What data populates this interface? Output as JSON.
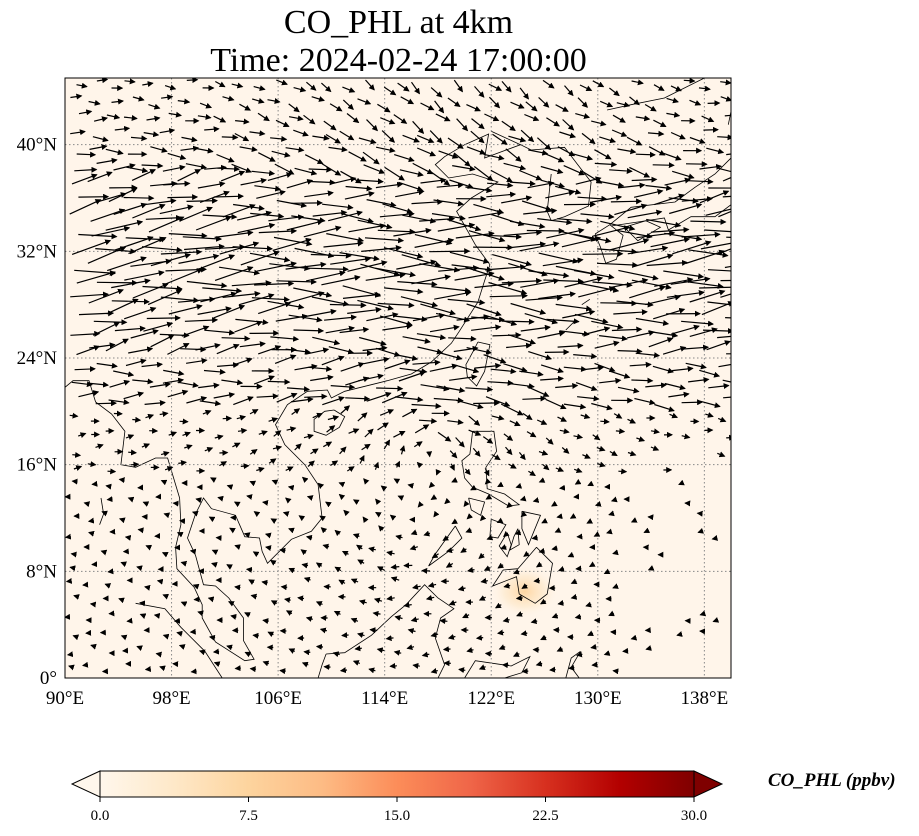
{
  "title": {
    "line1": "CO_PHL at 4km",
    "line2": "Time: 2024-02-24 17:00:00"
  },
  "map": {
    "lon_range": [
      90,
      140
    ],
    "lat_range": [
      0,
      45
    ],
    "lon_ticks": [
      {
        "value": 90,
        "label": "90°E"
      },
      {
        "value": 98,
        "label": "98°E"
      },
      {
        "value": 106,
        "label": "106°E"
      },
      {
        "value": 114,
        "label": "114°E"
      },
      {
        "value": 122,
        "label": "122°E"
      },
      {
        "value": 130,
        "label": "130°E"
      },
      {
        "value": 138,
        "label": "138°E"
      }
    ],
    "lat_ticks": [
      {
        "value": 0,
        "label": "0°"
      },
      {
        "value": 8,
        "label": "8°N"
      },
      {
        "value": 16,
        "label": "16°N"
      },
      {
        "value": 24,
        "label": "24°N"
      },
      {
        "value": 32,
        "label": "32°N"
      },
      {
        "value": 40,
        "label": "40°N"
      }
    ],
    "background_color": "#fff5ea",
    "gridline_color": "#888888",
    "plume": {
      "lon": 124.5,
      "lat": 6.5,
      "value": 4.5
    }
  },
  "colorbar": {
    "label": "CO_PHL (ppbv)",
    "min": 0.0,
    "max": 30.0,
    "ticks": [
      {
        "value": 0,
        "label": "0.0"
      },
      {
        "value": 7.5,
        "label": "7.5"
      },
      {
        "value": 15,
        "label": "15.0"
      },
      {
        "value": 22.5,
        "label": "22.5"
      },
      {
        "value": 30,
        "label": "30.0"
      }
    ],
    "colormap": "OrRd",
    "colors": [
      "#fff7ec",
      "#fee8c8",
      "#fdd49e",
      "#fdbb84",
      "#fc8d59",
      "#ef6548",
      "#d7301f",
      "#b30000",
      "#7f0000"
    ]
  }
}
